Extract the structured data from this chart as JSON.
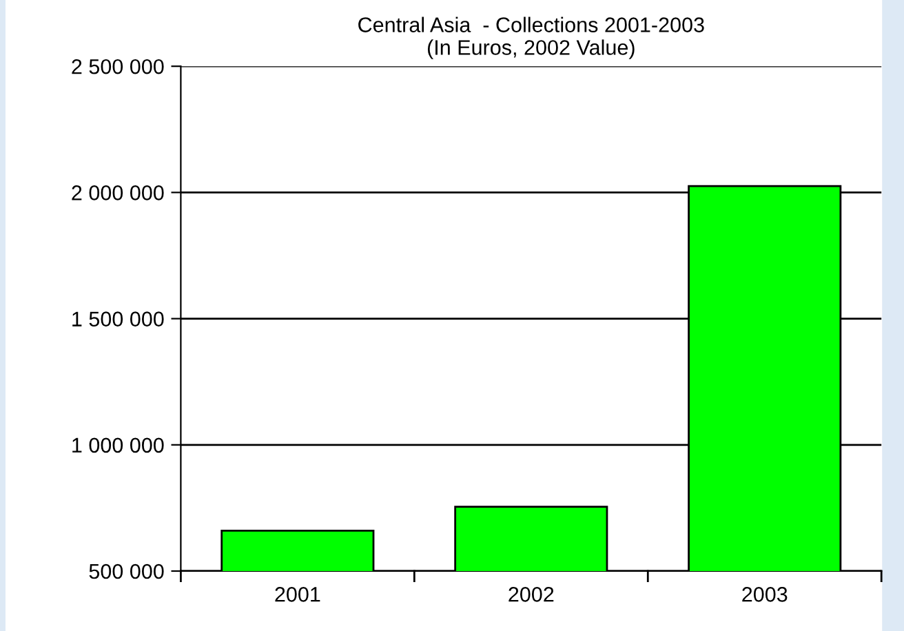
{
  "chart_data": {
    "type": "bar",
    "title": "Central Asia  - Collections 2001-2003",
    "subtitle": "(In Euros, 2002 Value)",
    "categories": [
      "2001",
      "2002",
      "2003"
    ],
    "values": [
      660000,
      755000,
      2025000
    ],
    "color": "#00ff00",
    "ylim": [
      500000,
      2500000
    ],
    "yticks": [
      {
        "value": 500000,
        "label": "500 000"
      },
      {
        "value": 1000000,
        "label": "1 000 000"
      },
      {
        "value": 1500000,
        "label": "1 500 000"
      },
      {
        "value": 2000000,
        "label": "2 000 000"
      },
      {
        "value": 2500000,
        "label": "2 500 000"
      }
    ],
    "grid": "y"
  }
}
